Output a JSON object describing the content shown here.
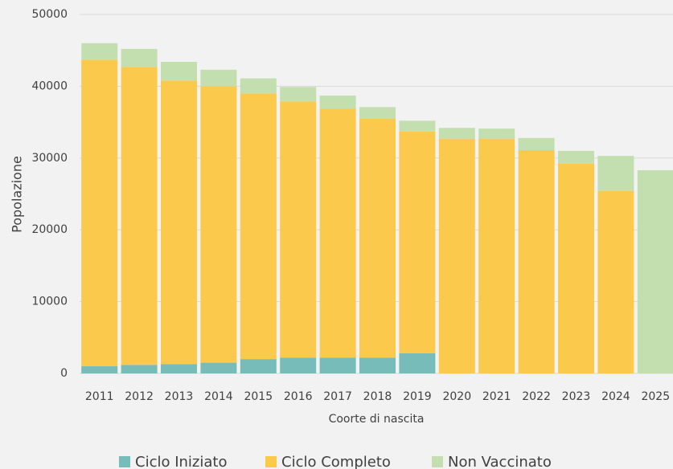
{
  "chart_data": {
    "type": "stacked_bar",
    "categories": [
      "2011",
      "2012",
      "2013",
      "2014",
      "2015",
      "2016",
      "2017",
      "2018",
      "2019",
      "2020",
      "2021",
      "2022",
      "2023",
      "2024",
      "2025"
    ],
    "series": [
      {
        "name": "Ciclo Iniziato",
        "color": "#77bcb9",
        "values": [
          1000,
          1200,
          1300,
          1500,
          2000,
          2200,
          2200,
          2200,
          2800,
          0,
          0,
          0,
          0,
          0,
          0
        ]
      },
      {
        "name": "Ciclo Completo",
        "color": "#fbc94b",
        "values": [
          42700,
          41500,
          39500,
          38500,
          37000,
          35700,
          34700,
          33300,
          30900,
          32700,
          32700,
          31100,
          29200,
          25400,
          0
        ]
      },
      {
        "name": "Non Vaccinato",
        "color": "#c3dfb0",
        "values": [
          2300,
          2500,
          2600,
          2300,
          2100,
          2000,
          1800,
          1600,
          1500,
          1500,
          1400,
          1700,
          1800,
          4900,
          28300
        ]
      }
    ],
    "y_label": "Popolazione",
    "x_label": "Coorte di nascita",
    "ylim": [
      0,
      50000
    ],
    "yticks": [
      0,
      10000,
      20000,
      30000,
      40000,
      50000
    ],
    "grid": true,
    "legend": "bottom"
  }
}
